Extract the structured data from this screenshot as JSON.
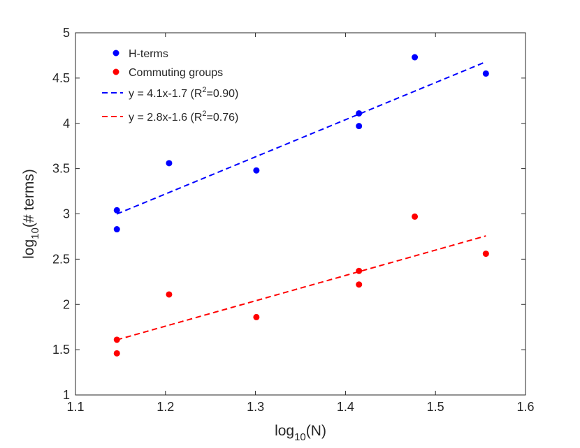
{
  "chart_data": {
    "type": "scatter",
    "title": "",
    "xlabel": {
      "base": "log",
      "sub": "10",
      "rest": "(N)"
    },
    "ylabel": {
      "base": "log",
      "sub": "10",
      "rest": "(# terms)"
    },
    "xlim": [
      1.1,
      1.6
    ],
    "ylim": [
      1,
      5
    ],
    "xticks": [
      1.1,
      1.2,
      1.3,
      1.4,
      1.5,
      1.6
    ],
    "yticks": [
      1,
      1.5,
      2,
      2.5,
      3,
      3.5,
      4,
      4.5,
      5
    ],
    "xtick_labels": [
      "1.1",
      "1.2",
      "1.3",
      "1.4",
      "1.5",
      "1.6"
    ],
    "ytick_labels": [
      "1",
      "1.5",
      "2",
      "2.5",
      "3",
      "3.5",
      "4",
      "4.5",
      "5"
    ],
    "grid": false,
    "legend_position": "top-left",
    "series": [
      {
        "name": "H-terms",
        "kind": "points",
        "color": "#0000ff",
        "x": [
          1.146,
          1.146,
          1.204,
          1.301,
          1.415,
          1.415,
          1.477,
          1.556
        ],
        "y": [
          2.83,
          3.04,
          3.56,
          3.48,
          3.97,
          4.11,
          4.73,
          4.55
        ]
      },
      {
        "name": "Commuting groups",
        "kind": "points",
        "color": "#ff0000",
        "x": [
          1.146,
          1.146,
          1.204,
          1.301,
          1.415,
          1.415,
          1.477,
          1.556
        ],
        "y": [
          1.46,
          1.61,
          2.11,
          1.86,
          2.22,
          2.37,
          2.97,
          2.56
        ]
      },
      {
        "name_prefix": "y = 4.1x-1.7 (R",
        "name_sup": "2",
        "name_suffix": "=0.90)",
        "kind": "dashed-line",
        "color": "#0000ff",
        "slope": 4.1,
        "intercept": -1.7,
        "x_range": [
          1.146,
          1.556
        ]
      },
      {
        "name_prefix": "y = 2.8x-1.6 (R",
        "name_sup": "2",
        "name_suffix": "=0.76)",
        "kind": "dashed-line",
        "color": "#ff0000",
        "slope": 2.8,
        "intercept": -1.6,
        "x_range": [
          1.146,
          1.556
        ]
      }
    ]
  }
}
